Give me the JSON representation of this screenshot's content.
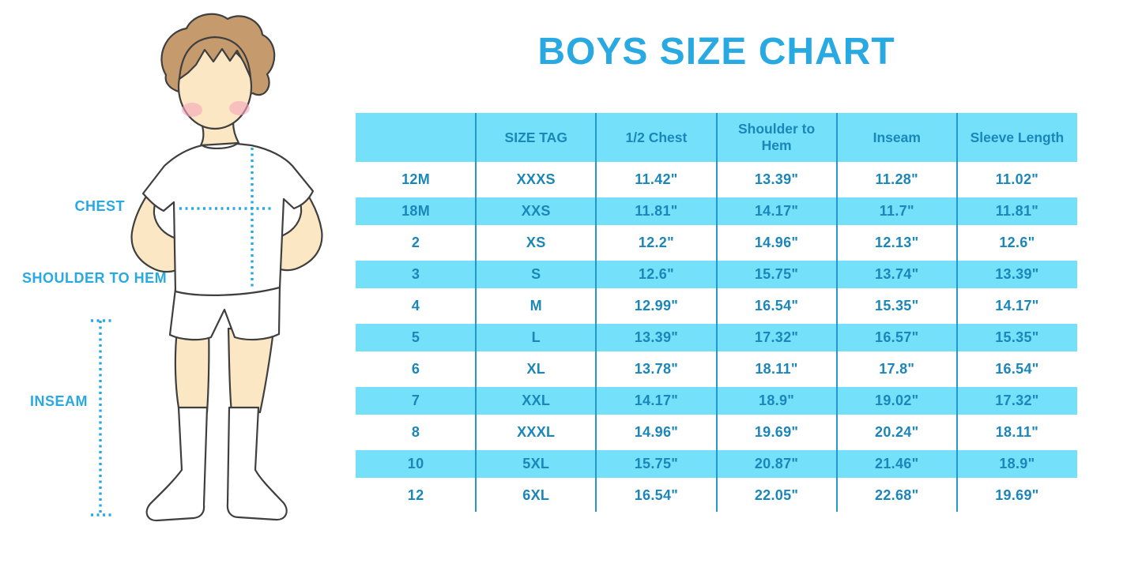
{
  "title": "BOYS SIZE CHART",
  "figure": {
    "labels": {
      "chest": "CHEST",
      "shoulder_to_hem": "SHOULDER TO HEM",
      "inseam": "INSEAM"
    }
  },
  "colors": {
    "accent_blue": "#29A9E1",
    "row_stripe_blue": "#74E0FA",
    "column_divider_blue": "#2497CC",
    "table_text_blue": "#1B86B9",
    "skin": "#FBE7C4",
    "hair_brown": "#C59B6D",
    "blush_pink": "#F5A6BC"
  },
  "chart_data": {
    "type": "table",
    "title": "BOYS SIZE CHART",
    "columns": [
      "",
      "SIZE TAG",
      "1/2 Chest",
      "Shoulder to Hem",
      "Inseam",
      "Sleeve Length"
    ],
    "rows": [
      [
        "12M",
        "XXXS",
        "11.42\"",
        "13.39\"",
        "11.28\"",
        "11.02\""
      ],
      [
        "18M",
        "XXS",
        "11.81\"",
        "14.17\"",
        "11.7\"",
        "11.81\""
      ],
      [
        "2",
        "XS",
        "12.2\"",
        "14.96\"",
        "12.13\"",
        "12.6\""
      ],
      [
        "3",
        "S",
        "12.6\"",
        "15.75\"",
        "13.74\"",
        "13.39\""
      ],
      [
        "4",
        "M",
        "12.99\"",
        "16.54\"",
        "15.35\"",
        "14.17\""
      ],
      [
        "5",
        "L",
        "13.39\"",
        "17.32\"",
        "16.57\"",
        "15.35\""
      ],
      [
        "6",
        "XL",
        "13.78\"",
        "18.11\"",
        "17.8\"",
        "16.54\""
      ],
      [
        "7",
        "XXL",
        "14.17\"",
        "18.9\"",
        "19.02\"",
        "17.32\""
      ],
      [
        "8",
        "XXXL",
        "14.96\"",
        "19.69\"",
        "20.24\"",
        "18.11\""
      ],
      [
        "10",
        "5XL",
        "15.75\"",
        "20.87\"",
        "21.46\"",
        "18.9\""
      ],
      [
        "12",
        "6XL",
        "16.54\"",
        "22.05\"",
        "22.68\"",
        "19.69\""
      ]
    ]
  }
}
